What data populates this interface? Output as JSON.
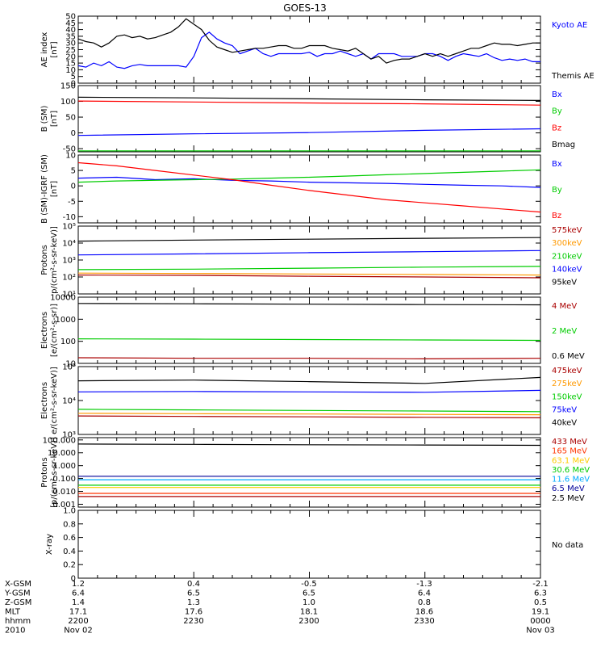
{
  "chart_data": {
    "title": "GOES-13",
    "x_time": [
      "2200",
      "2230",
      "2300",
      "2330",
      "0000"
    ],
    "panels": [
      {
        "id": "ae",
        "type": "line",
        "ylabel": [
          "AE index",
          "[nT]"
        ],
        "ylim": [
          0,
          50
        ],
        "yticks": [
          0,
          5,
          10,
          15,
          20,
          25,
          30,
          35,
          40,
          45,
          50
        ],
        "ytick_labels": [
          "0",
          "5",
          "10",
          "15",
          "20",
          "25",
          "30",
          "35",
          "40",
          "45",
          "50"
        ],
        "log": false,
        "series": [
          {
            "name": "Kyoto AE",
            "color": "#0000ff",
            "x": [
              0,
              2,
              4,
              6,
              8,
              10,
              12,
              14,
              16,
              18,
              20,
              22,
              24,
              26,
              28,
              30,
              32,
              34,
              36,
              38,
              40,
              42,
              44,
              46,
              48,
              50,
              52,
              54,
              56,
              58,
              60,
              62,
              64,
              66,
              68,
              70,
              72,
              74,
              76,
              78,
              80,
              82,
              84,
              86,
              88,
              90,
              92,
              94,
              96,
              98,
              100,
              102,
              104,
              106,
              108,
              110,
              112,
              114,
              116,
              118,
              120
            ],
            "y": [
              13,
              12,
              15,
              13,
              16,
              12,
              11,
              13,
              14,
              13,
              13,
              13,
              13,
              13,
              12,
              20,
              34,
              38,
              33,
              30,
              28,
              22,
              24,
              26,
              22,
              20,
              22,
              22,
              22,
              22,
              23,
              20,
              22,
              22,
              24,
              22,
              20,
              22,
              18,
              22,
              22,
              22,
              20,
              20,
              20,
              22,
              22,
              20,
              17,
              20,
              22,
              21,
              20,
              22,
              19,
              17,
              18,
              17,
              18,
              16,
              16
            ]
          },
          {
            "name": "Themis AE",
            "color": "#000000",
            "x": [
              0,
              2,
              4,
              6,
              8,
              10,
              12,
              14,
              16,
              18,
              20,
              22,
              24,
              26,
              28,
              30,
              32,
              34,
              36,
              38,
              40,
              42,
              44,
              46,
              48,
              50,
              52,
              54,
              56,
              58,
              60,
              62,
              64,
              66,
              68,
              70,
              72,
              74,
              76,
              78,
              80,
              82,
              84,
              86,
              88,
              90,
              92,
              94,
              96,
              98,
              100,
              102,
              104,
              106,
              108,
              110,
              112,
              114,
              116,
              118,
              120
            ],
            "y": [
              33,
              31,
              30,
              27,
              30,
              35,
              36,
              34,
              35,
              33,
              34,
              36,
              38,
              42,
              48,
              44,
              40,
              32,
              27,
              25,
              23,
              24,
              25,
              26,
              26,
              27,
              28,
              28,
              26,
              26,
              28,
              28,
              28,
              26,
              25,
              24,
              26,
              22,
              18,
              20,
              15,
              17,
              18,
              18,
              20,
              22,
              20,
              22,
              20,
              22,
              24,
              26,
              26,
              28,
              30,
              29,
              29,
              28,
              29,
              30,
              30
            ]
          }
        ]
      },
      {
        "id": "b_sm",
        "type": "line",
        "ylabel": [
          "B (SM)",
          "[nT]"
        ],
        "ylim": [
          -60,
          150
        ],
        "yticks": [
          -50,
          0,
          50,
          100,
          150
        ],
        "ytick_labels": [
          "-50",
          "0",
          "50",
          "100",
          "150"
        ],
        "log": false,
        "series": [
          {
            "name": "Bx",
            "color": "#0000ff",
            "x": [
              0,
              30,
              60,
              90,
              120
            ],
            "y": [
              -8,
              -3,
              1,
              8,
              13
            ]
          },
          {
            "name": "By",
            "color": "#00cc00",
            "x": [
              0,
              30,
              60,
              90,
              120
            ],
            "y": [
              -57,
              -57,
              -57,
              -57,
              -57
            ]
          },
          {
            "name": "Bz",
            "color": "#ff0000",
            "x": [
              0,
              30,
              60,
              90,
              120
            ],
            "y": [
              101,
              98,
              95,
              92,
              88
            ]
          },
          {
            "name": "Bmag",
            "color": "#000000",
            "x": [
              0,
              30,
              60,
              90,
              120
            ],
            "y": [
              113,
              111,
              108,
              105,
              103
            ]
          }
        ]
      },
      {
        "id": "b_igrf",
        "type": "line",
        "ylabel": [
          "B (SM)-IGRF (SM)",
          "[nT]"
        ],
        "ylim": [
          -12,
          10
        ],
        "yticks": [
          -10,
          -5,
          0,
          5,
          10
        ],
        "ytick_labels": [
          "-10",
          "-5",
          "0",
          "5",
          "10"
        ],
        "log": false,
        "series": [
          {
            "name": "Bx",
            "color": "#0000ff",
            "x": [
              0,
              10,
              20,
              30,
              40,
              50,
              60,
              70,
              80,
              90,
              100,
              110,
              120
            ],
            "y": [
              2.5,
              2.8,
              2.0,
              2.3,
              1.8,
              1.6,
              1.2,
              1.0,
              0.8,
              0.5,
              0.2,
              0.0,
              -0.5
            ]
          },
          {
            "name": "By",
            "color": "#00cc00",
            "x": [
              0,
              10,
              20,
              30,
              40,
              50,
              60,
              70,
              80,
              90,
              100,
              110,
              120
            ],
            "y": [
              1.2,
              1.6,
              1.8,
              2.0,
              2.2,
              2.5,
              2.8,
              3.2,
              3.6,
              4.0,
              4.4,
              4.8,
              5.2
            ]
          },
          {
            "name": "Bz",
            "color": "#ff0000",
            "x": [
              0,
              10,
              20,
              30,
              40,
              50,
              60,
              70,
              80,
              90,
              100,
              110,
              120
            ],
            "y": [
              7.5,
              6.5,
              5.0,
              3.5,
              2.0,
              0.2,
              -1.5,
              -3.0,
              -4.5,
              -5.5,
              -6.5,
              -7.5,
              -8.5
            ]
          }
        ]
      },
      {
        "id": "protons_low",
        "type": "line",
        "ylabel": [
          "Protons",
          "p/(cm²-s-sr-keV)]"
        ],
        "ylim": [
          10,
          100000
        ],
        "yticks": [
          10,
          100,
          1000,
          10000,
          100000
        ],
        "ytick_labels": [
          "10¹",
          "10²",
          "10³",
          "10⁴",
          "10⁵"
        ],
        "log": true,
        "series": [
          {
            "name": "575keV",
            "color": "#aa0000",
            "x": [
              0,
              30,
              60,
              90,
              120
            ],
            "y": [
              130,
              125,
              110,
              100,
              90
            ]
          },
          {
            "name": "300keV",
            "color": "#ff9900",
            "x": [
              0,
              30,
              60,
              90,
              120
            ],
            "y": [
              170,
              160,
              150,
              140,
              130
            ]
          },
          {
            "name": "210keV",
            "color": "#00cc00",
            "x": [
              0,
              30,
              60,
              90,
              120
            ],
            "y": [
              270,
              290,
              330,
              380,
              420
            ]
          },
          {
            "name": "140keV",
            "color": "#0000ff",
            "x": [
              0,
              30,
              60,
              90,
              120
            ],
            "y": [
              2000,
              2300,
              2700,
              3100,
              3600
            ]
          },
          {
            "name": "95keV",
            "color": "#000000",
            "x": [
              0,
              30,
              60,
              90,
              120
            ],
            "y": [
              13000,
              15000,
              17000,
              19000,
              21000
            ]
          }
        ]
      },
      {
        "id": "electrons_high",
        "type": "line",
        "ylabel": [
          "Electrons",
          "[e/(cm²-s-sr)]"
        ],
        "ylim": [
          10,
          10000
        ],
        "yticks": [
          10,
          100,
          1000,
          10000
        ],
        "ytick_labels": [
          "10",
          "100",
          "1000",
          "10000"
        ],
        "log": true,
        "series": [
          {
            "name": "4 MeV",
            "color": "#aa0000",
            "x": [
              0,
              30,
              60,
              90,
              120
            ],
            "y": [
              18,
              17,
              17,
              16,
              17
            ]
          },
          {
            "name": "2 MeV",
            "color": "#00cc00",
            "x": [
              0,
              30,
              60,
              90,
              120
            ],
            "y": [
              130,
              125,
              120,
              115,
              110
            ]
          },
          {
            "name": "0.6 MeV",
            "color": "#000000",
            "x": [
              0,
              30,
              60,
              90,
              120
            ],
            "y": [
              5200,
              5000,
              4800,
              4600,
              4500
            ]
          }
        ]
      },
      {
        "id": "electrons_low",
        "type": "line",
        "ylabel": [
          "Electrons",
          "e/(cm²-s-sr-keV)]"
        ],
        "ylim": [
          1000,
          100000
        ],
        "yticks": [
          1000,
          10000,
          100000
        ],
        "ytick_labels": [
          "10³",
          "10⁴",
          "10⁵"
        ],
        "log": true,
        "series": [
          {
            "name": "475keV",
            "color": "#aa0000",
            "x": [
              0,
              30,
              60,
              90,
              120
            ],
            "y": [
              3500,
              3400,
              3300,
              3200,
              3100
            ]
          },
          {
            "name": "275keV",
            "color": "#ff9900",
            "x": [
              0,
              30,
              60,
              90,
              120
            ],
            "y": [
              4200,
              4100,
              4000,
              3900,
              3800
            ]
          },
          {
            "name": "150keV",
            "color": "#00cc00",
            "x": [
              0,
              30,
              60,
              90,
              120
            ],
            "y": [
              5500,
              5300,
              5100,
              4900,
              4700
            ]
          },
          {
            "name": "75keV",
            "color": "#0000ff",
            "x": [
              0,
              30,
              60,
              90,
              120
            ],
            "y": [
              18000,
              18500,
              18000,
              17500,
              20000
            ]
          },
          {
            "name": "40keV",
            "color": "#000000",
            "x": [
              0,
              30,
              60,
              90,
              120
            ],
            "y": [
              38000,
              40000,
              36000,
              32000,
              48000
            ]
          }
        ]
      },
      {
        "id": "protons_high",
        "type": "line",
        "ylabel": [
          "Protons",
          "[p/(cm²-s-sr-keV)]"
        ],
        "ylim": [
          0.0006,
          150
        ],
        "yticks": [
          0.001,
          0.01,
          0.1,
          1.0,
          10.0,
          100.0
        ],
        "ytick_labels": [
          "0.001",
          "0.010",
          "0.100",
          "1.000",
          "10.000",
          "100.000"
        ],
        "log": true,
        "series": [
          {
            "name": "433 MeV",
            "color": "#aa0000",
            "x": [
              0,
              30,
              60,
              90,
              120
            ],
            "y": [
              0.004,
              0.004,
              0.004,
              0.004,
              0.004
            ]
          },
          {
            "name": "165 MeV",
            "color": "#ff3300",
            "x": [
              0,
              30,
              60,
              90,
              120
            ],
            "y": [
              0.007,
              0.007,
              0.007,
              0.007,
              0.007
            ]
          },
          {
            "name": "63.1 MeV",
            "color": "#ffcc00",
            "x": [
              0,
              30,
              60,
              90,
              120
            ],
            "y": [
              0.02,
              0.02,
              0.02,
              0.02,
              0.02
            ]
          },
          {
            "name": "30.6 MeV",
            "color": "#00cc00",
            "x": [
              0,
              30,
              60,
              90,
              120
            ],
            "y": [
              0.03,
              0.03,
              0.03,
              0.03,
              0.03
            ]
          },
          {
            "name": "11.6 MeV",
            "color": "#00aaff",
            "x": [
              0,
              30,
              60,
              90,
              120
            ],
            "y": [
              0.08,
              0.08,
              0.08,
              0.08,
              0.08
            ]
          },
          {
            "name": "6.5 MeV",
            "color": "#000099",
            "x": [
              0,
              30,
              60,
              90,
              120
            ],
            "y": [
              0.15,
              0.15,
              0.15,
              0.15,
              0.15
            ]
          },
          {
            "name": "2.5 MeV",
            "color": "#000000",
            "x": [
              0,
              30,
              60,
              90,
              120
            ],
            "y": [
              48,
              45,
              42,
              40,
              38
            ]
          }
        ]
      },
      {
        "id": "xray",
        "type": "line",
        "ylabel": [
          "X-ray"
        ],
        "ylim": [
          0,
          1.0
        ],
        "yticks": [
          0,
          0.2,
          0.4,
          0.6,
          0.8,
          1.0
        ],
        "ytick_labels": [
          "0",
          "0.2",
          "0.4",
          "0.6",
          "0.8",
          "1.0"
        ],
        "log": false,
        "series": [],
        "annotation": "No data"
      }
    ],
    "orbit_rows": [
      {
        "label": "X-GSM",
        "values": [
          "1.2",
          "0.4",
          "-0.5",
          "-1.3",
          "-2.1"
        ]
      },
      {
        "label": "Y-GSM",
        "values": [
          "6.4",
          "6.5",
          "6.5",
          "6.4",
          "6.3"
        ]
      },
      {
        "label": "Z-GSM",
        "values": [
          "1.4",
          "1.3",
          "1.0",
          "0.8",
          "0.5"
        ]
      },
      {
        "label": "MLT",
        "values": [
          "17.1",
          "17.6",
          "18.1",
          "18.6",
          "19.1"
        ]
      },
      {
        "label": "hhmm",
        "values": [
          "2200",
          "2230",
          "2300",
          "2330",
          "0000"
        ]
      },
      {
        "label": "2010",
        "values": [
          "Nov 02",
          "",
          "",
          "",
          "Nov 03"
        ]
      }
    ]
  }
}
